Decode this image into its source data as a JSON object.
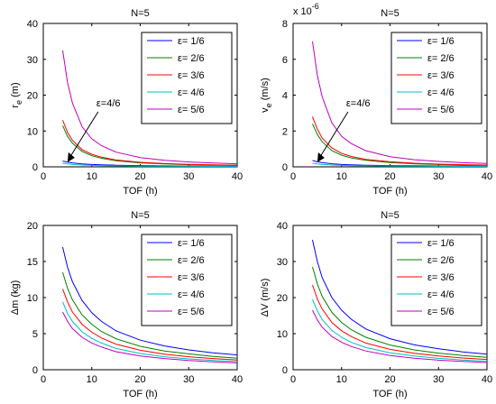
{
  "colors": {
    "series": [
      "#0000ff",
      "#008000",
      "#ff0000",
      "#00bfbf",
      "#bf00bf"
    ],
    "axes": "#000000",
    "arrow": "#000000"
  },
  "chart_data": [
    {
      "type": "line",
      "title": "N=5",
      "xlabel": "TOF (h)",
      "ylabel": "r_e (m)",
      "ylabel_main": "r",
      "ylabel_sub": "e",
      "ylabel_unit": " (m)",
      "xlim": [
        0,
        40
      ],
      "ylim": [
        0,
        40
      ],
      "xticks": [
        "0",
        "10",
        "20",
        "30",
        "40"
      ],
      "yticks": [
        "0",
        "10",
        "20",
        "30",
        "40"
      ],
      "multiplier": "",
      "grid": false,
      "legend_position": "top-right",
      "annotation": {
        "text": "ε=4/6",
        "x": 5,
        "y": 1.3
      },
      "x": [
        4,
        5,
        6,
        8,
        10,
        12,
        15,
        20,
        25,
        30,
        35,
        40
      ],
      "series": [
        {
          "name": "ε= 1/6",
          "values": [
            1.6,
            1.3,
            1.1,
            0.8,
            0.65,
            0.55,
            0.45,
            0.35,
            0.28,
            0.23,
            0.2,
            0.18
          ]
        },
        {
          "name": "ε= 2/6",
          "values": [
            11.5,
            8.5,
            6.6,
            4.3,
            3.1,
            2.4,
            1.7,
            1.1,
            0.8,
            0.6,
            0.5,
            0.42
          ]
        },
        {
          "name": "ε= 3/6",
          "values": [
            13,
            9.6,
            7.4,
            4.8,
            3.5,
            2.7,
            1.9,
            1.25,
            0.9,
            0.68,
            0.55,
            0.46
          ]
        },
        {
          "name": "ε= 4/6",
          "values": [
            1.0,
            0.8,
            0.65,
            0.5,
            0.4,
            0.33,
            0.27,
            0.21,
            0.17,
            0.14,
            0.12,
            0.11
          ]
        },
        {
          "name": "ε= 5/6",
          "values": [
            32.5,
            23.5,
            17.8,
            11.2,
            7.8,
            5.9,
            4.1,
            2.6,
            1.8,
            1.35,
            1.05,
            0.85
          ]
        }
      ]
    },
    {
      "type": "line",
      "title": "N=5",
      "xlabel": "TOF (h)",
      "ylabel": "v_e (m/s)",
      "ylabel_main": "v",
      "ylabel_sub": "e",
      "ylabel_unit": " (m/s)",
      "xlim": [
        0,
        40
      ],
      "ylim": [
        0,
        8
      ],
      "xticks": [
        "0",
        "10",
        "20",
        "30",
        "40"
      ],
      "yticks": [
        "0",
        "2",
        "4",
        "6",
        "8"
      ],
      "multiplier": "x 10",
      "multiplier_exp": "-6",
      "grid": false,
      "legend_position": "top-right",
      "annotation": {
        "text": "ε=4/6",
        "x": 5,
        "y": 0.25
      },
      "x": [
        4,
        5,
        6,
        8,
        10,
        12,
        15,
        20,
        25,
        30,
        35,
        40
      ],
      "series": [
        {
          "name": "ε= 1/6",
          "values": [
            0.35,
            0.28,
            0.23,
            0.17,
            0.13,
            0.11,
            0.09,
            0.07,
            0.06,
            0.05,
            0.045,
            0.04
          ]
        },
        {
          "name": "ε= 2/6",
          "values": [
            2.4,
            1.8,
            1.4,
            0.9,
            0.65,
            0.5,
            0.36,
            0.24,
            0.17,
            0.13,
            0.1,
            0.085
          ]
        },
        {
          "name": "ε= 3/6",
          "values": [
            2.8,
            2.1,
            1.6,
            1.05,
            0.75,
            0.58,
            0.42,
            0.28,
            0.2,
            0.15,
            0.12,
            0.1
          ]
        },
        {
          "name": "ε= 4/6",
          "values": [
            0.2,
            0.16,
            0.13,
            0.1,
            0.08,
            0.065,
            0.055,
            0.045,
            0.035,
            0.03,
            0.025,
            0.022
          ]
        },
        {
          "name": "ε= 5/6",
          "values": [
            7.0,
            5.1,
            3.9,
            2.45,
            1.7,
            1.3,
            0.9,
            0.57,
            0.4,
            0.3,
            0.23,
            0.19
          ]
        }
      ]
    },
    {
      "type": "line",
      "title": "N=5",
      "xlabel": "TOF (h)",
      "ylabel": "Δm (kg)",
      "ylabel_main": "Δm (kg)",
      "ylabel_sub": "",
      "ylabel_unit": "",
      "xlim": [
        0,
        40
      ],
      "ylim": [
        0,
        20
      ],
      "xticks": [
        "0",
        "10",
        "20",
        "30",
        "40"
      ],
      "yticks": [
        "0",
        "5",
        "10",
        "15",
        "20"
      ],
      "multiplier": "",
      "grid": false,
      "legend_position": "top-right",
      "x": [
        4,
        5,
        6,
        8,
        10,
        12,
        15,
        20,
        25,
        30,
        35,
        40
      ],
      "series": [
        {
          "name": "ε= 1/6",
          "values": [
            17,
            14.2,
            12.2,
            9.6,
            7.9,
            6.7,
            5.4,
            4.1,
            3.3,
            2.75,
            2.35,
            2.05
          ]
        },
        {
          "name": "ε= 2/6",
          "values": [
            13.5,
            11.3,
            9.7,
            7.6,
            6.3,
            5.3,
            4.3,
            3.25,
            2.6,
            2.2,
            1.85,
            1.6
          ]
        },
        {
          "name": "ε= 3/6",
          "values": [
            11.2,
            9.4,
            8.0,
            6.3,
            5.2,
            4.4,
            3.55,
            2.7,
            2.15,
            1.8,
            1.55,
            1.35
          ]
        },
        {
          "name": "ε= 4/6",
          "values": [
            9.4,
            7.8,
            6.7,
            5.25,
            4.35,
            3.7,
            2.95,
            2.25,
            1.8,
            1.5,
            1.3,
            1.12
          ]
        },
        {
          "name": "ε= 5/6",
          "values": [
            8.0,
            6.7,
            5.7,
            4.5,
            3.7,
            3.15,
            2.5,
            1.9,
            1.55,
            1.28,
            1.1,
            0.95
          ]
        }
      ]
    },
    {
      "type": "line",
      "title": "N=5",
      "xlabel": "TOF (h)",
      "ylabel": "ΔV (m/s)",
      "ylabel_main": "ΔV (m/s)",
      "ylabel_sub": "",
      "ylabel_unit": "",
      "xlim": [
        0,
        40
      ],
      "ylim": [
        0,
        40
      ],
      "xticks": [
        "0",
        "10",
        "20",
        "30",
        "40"
      ],
      "yticks": [
        "0",
        "10",
        "20",
        "30",
        "40"
      ],
      "multiplier": "",
      "grid": false,
      "legend_position": "top-right",
      "x": [
        4,
        5,
        6,
        8,
        10,
        12,
        15,
        20,
        25,
        30,
        35,
        40
      ],
      "series": [
        {
          "name": "ε= 1/6",
          "values": [
            36,
            30,
            25.5,
            20,
            16.5,
            14,
            11.3,
            8.6,
            6.9,
            5.8,
            4.95,
            4.3
          ]
        },
        {
          "name": "ε= 2/6",
          "values": [
            28.5,
            23.8,
            20.3,
            15.9,
            13.1,
            11.1,
            9.0,
            6.85,
            5.5,
            4.6,
            3.95,
            3.45
          ]
        },
        {
          "name": "ε= 3/6",
          "values": [
            23.5,
            19.6,
            16.8,
            13.1,
            10.8,
            9.2,
            7.4,
            5.65,
            4.55,
            3.8,
            3.25,
            2.85
          ]
        },
        {
          "name": "ε= 4/6",
          "values": [
            19.5,
            16.3,
            13.9,
            10.9,
            9.0,
            7.6,
            6.15,
            4.7,
            3.8,
            3.15,
            2.7,
            2.35
          ]
        },
        {
          "name": "ε= 5/6",
          "values": [
            16.5,
            13.8,
            11.8,
            9.2,
            7.6,
            6.45,
            5.2,
            3.95,
            3.2,
            2.65,
            2.3,
            2.0
          ]
        }
      ]
    }
  ]
}
